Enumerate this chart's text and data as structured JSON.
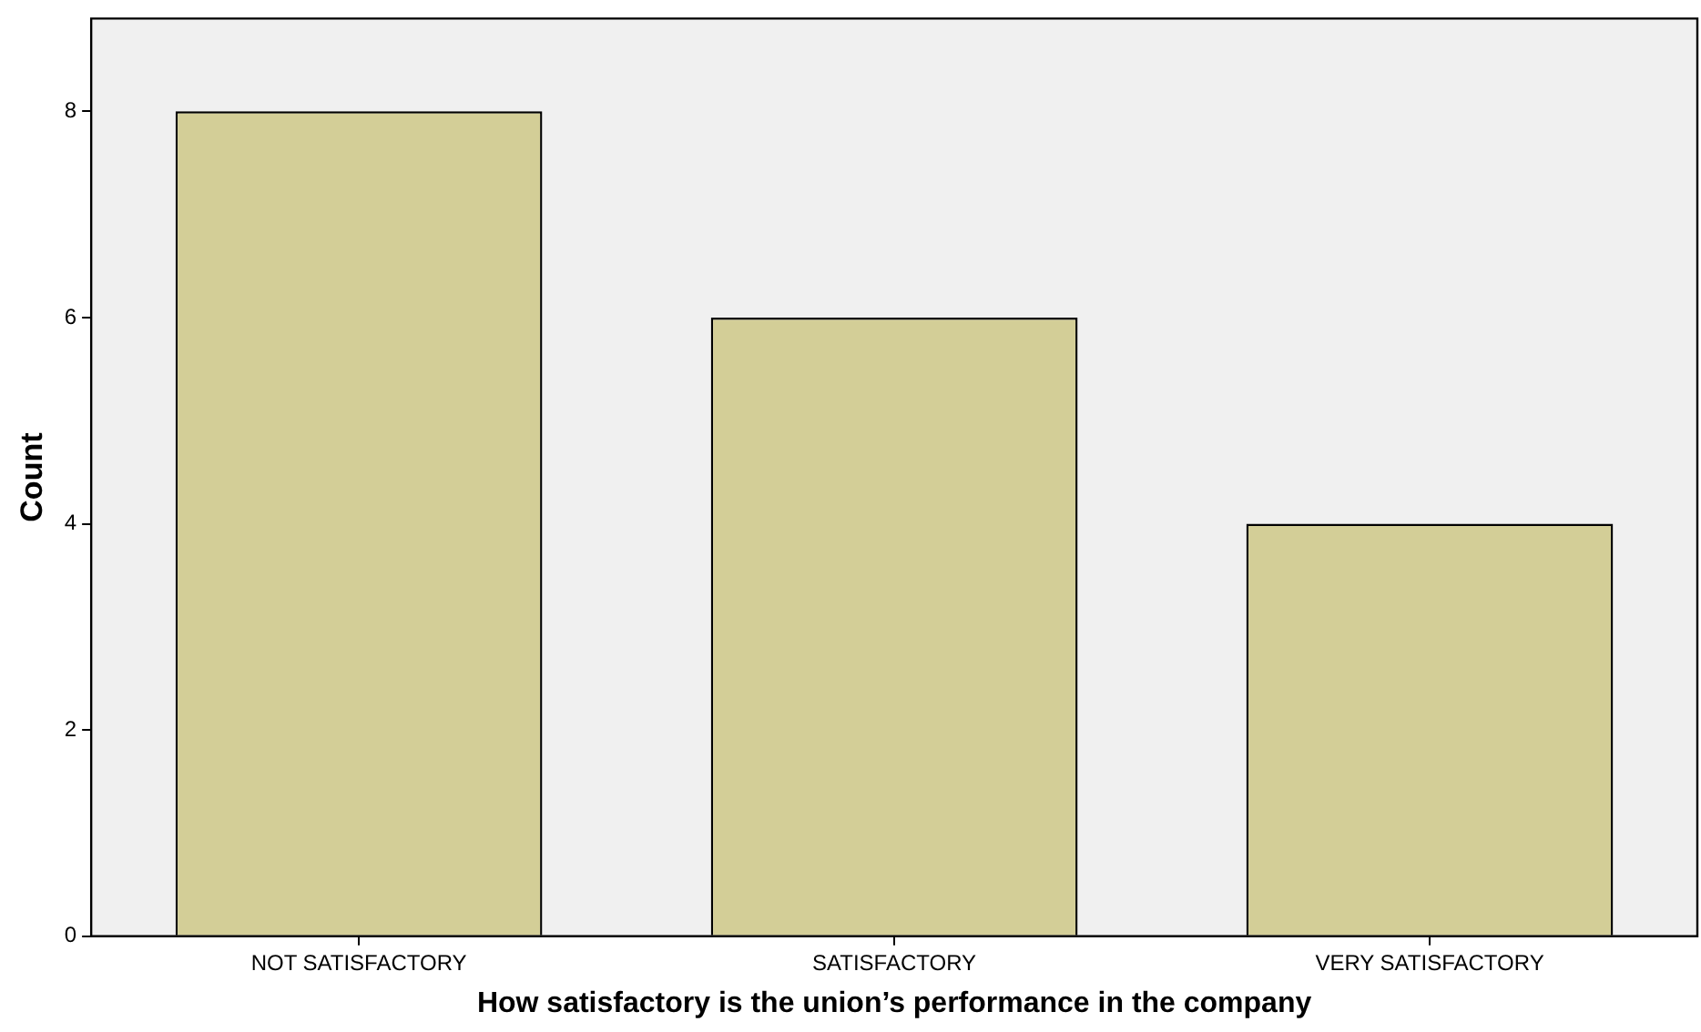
{
  "chart_data": {
    "type": "bar",
    "xlabel": "How satisfactory is the union’s performance in the company",
    "ylabel": "Count",
    "categories": [
      "NOT SATISFACTORY",
      "SATISFACTORY",
      "VERY SATISFACTORY"
    ],
    "values": [
      8,
      6,
      4
    ],
    "color": "#d3ce97",
    "ylim": [
      0,
      8.9
    ],
    "yticks": [
      0,
      2,
      4,
      6,
      8
    ],
    "grid": false,
    "legend": false
  }
}
